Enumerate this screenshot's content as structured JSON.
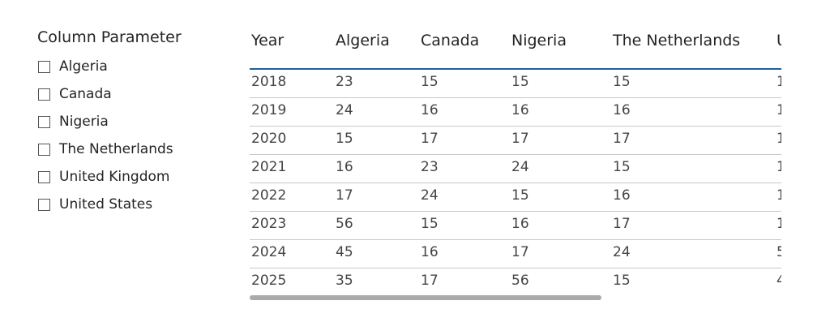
{
  "slicer": {
    "title": "Column Parameter",
    "items": [
      "Algeria",
      "Canada",
      "Nigeria",
      "The Netherlands",
      "United Kingdom",
      "United States"
    ]
  },
  "table": {
    "columns": [
      "Year",
      "Algeria",
      "Canada",
      "Nigeria",
      "The Netherlands",
      "U"
    ],
    "rows": [
      [
        "2018",
        "23",
        "15",
        "15",
        "15",
        "1"
      ],
      [
        "2019",
        "24",
        "16",
        "16",
        "16",
        "1"
      ],
      [
        "2020",
        "15",
        "17",
        "17",
        "17",
        "1"
      ],
      [
        "2021",
        "16",
        "23",
        "24",
        "15",
        "1"
      ],
      [
        "2022",
        "17",
        "24",
        "15",
        "16",
        "1"
      ],
      [
        "2023",
        "56",
        "15",
        "16",
        "17",
        "1"
      ],
      [
        "2024",
        "45",
        "16",
        "17",
        "24",
        "5"
      ],
      [
        "2025",
        "35",
        "17",
        "56",
        "15",
        "4"
      ]
    ]
  }
}
